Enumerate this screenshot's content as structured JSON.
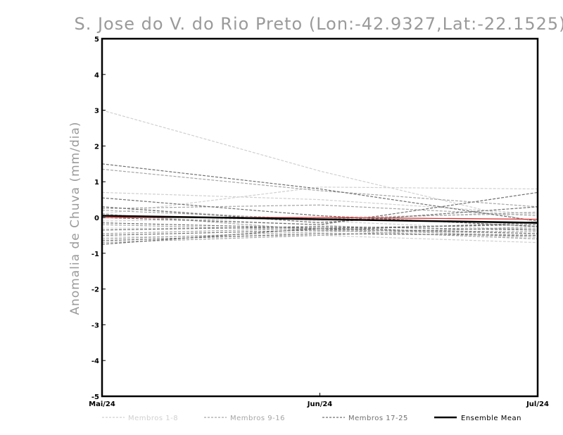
{
  "chart_data": {
    "type": "line",
    "title": "S. Jose do V. do Rio Preto (Lon:-42.9327,Lat:-22.1525)",
    "ylabel": "Anomalia de Chuva (mm/dia)",
    "xlabel": "",
    "categories": [
      "Mai/24",
      "Jun/24",
      "Jul/24"
    ],
    "ylim": [
      -5,
      5
    ],
    "yticks": [
      -5,
      -4,
      -3,
      -2,
      -1,
      0,
      1,
      2,
      3,
      4,
      5
    ],
    "grid": false,
    "legend_placement": "bottom",
    "legend": [
      {
        "label": "Membros 1-8",
        "color": "#d0d0d0",
        "style": "dashed"
      },
      {
        "label": "Membros 9-16",
        "color": "#a6a6a6",
        "style": "dashed"
      },
      {
        "label": "Membros 17-25",
        "color": "#707070",
        "style": "dashed"
      },
      {
        "label": "Ensemble Mean",
        "color": "#000000",
        "style": "solid"
      }
    ],
    "groups": [
      {
        "color": "#d0d0d0",
        "series": [
          [
            3.0,
            1.3,
            -0.15
          ],
          [
            0.7,
            0.5,
            0.1
          ],
          [
            0.1,
            0.85,
            0.8
          ],
          [
            -0.1,
            0.0,
            0.1
          ],
          [
            -0.3,
            -0.3,
            -0.5
          ],
          [
            -0.55,
            -0.5,
            -0.7
          ],
          [
            0.3,
            -0.1,
            -0.35
          ],
          [
            0.05,
            -0.2,
            -0.6
          ]
        ]
      },
      {
        "color": "#a6a6a6",
        "series": [
          [
            1.35,
            0.75,
            0.3
          ],
          [
            0.25,
            0.35,
            0.05
          ],
          [
            0.2,
            -0.05,
            0.15
          ],
          [
            -0.2,
            -0.35,
            -0.4
          ],
          [
            -0.45,
            -0.3,
            -0.55
          ],
          [
            -0.6,
            -0.4,
            -0.3
          ],
          [
            -0.7,
            -0.5,
            -0.25
          ],
          [
            0.1,
            -0.35,
            -0.6
          ]
        ]
      },
      {
        "color": "#707070",
        "series": [
          [
            1.5,
            0.8,
            -0.1
          ],
          [
            0.55,
            0.05,
            -0.25
          ],
          [
            0.3,
            -0.15,
            0.3
          ],
          [
            0.0,
            -0.2,
            0.7
          ],
          [
            -0.15,
            -0.3,
            -0.2
          ],
          [
            -0.35,
            -0.25,
            -0.35
          ],
          [
            -0.5,
            -0.35,
            -0.15
          ],
          [
            -0.65,
            -0.45,
            -0.5
          ],
          [
            -0.75,
            -0.3,
            -0.45
          ]
        ]
      }
    ],
    "highlight_series": {
      "color": "#e03030",
      "values": [
        0.0,
        0.0,
        -0.05
      ]
    },
    "ensemble_mean": {
      "color": "#000000",
      "values": [
        0.05,
        -0.05,
        -0.15
      ]
    }
  }
}
